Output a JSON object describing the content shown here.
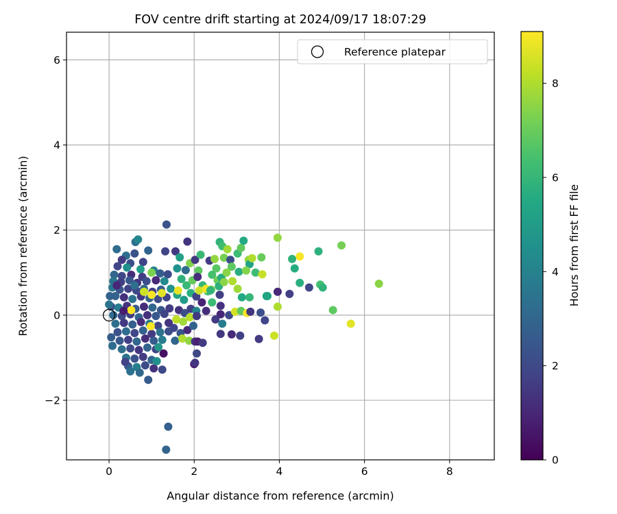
{
  "chart_data": {
    "type": "scatter",
    "title": "FOV centre drift starting at 2024/09/17 18:07:29",
    "xlabel": "Angular distance from reference (arcmin)",
    "ylabel": "Rotation from reference (arcmin)",
    "xlim": [
      -1.0,
      9.05
    ],
    "ylim": [
      -3.4,
      6.65
    ],
    "xticks": [
      0,
      2,
      4,
      6,
      8
    ],
    "yticks": [
      -2,
      0,
      2,
      4,
      6
    ],
    "xtick_labels": [
      "0",
      "2",
      "4",
      "6",
      "8"
    ],
    "ytick_labels": [
      "−2",
      "0",
      "2",
      "4",
      "6"
    ],
    "grid": true,
    "legend": {
      "position": "top-right",
      "entries": [
        {
          "label": "Reference platepar",
          "marker": "open-circle"
        }
      ]
    },
    "reference_point": {
      "x": 0,
      "y": 0
    },
    "colorbar": {
      "label": "Hours from first FF file",
      "colormap": "viridis",
      "range": [
        0,
        9.1
      ],
      "ticks": [
        0,
        2,
        4,
        6,
        8
      ],
      "tick_labels": [
        "0",
        "2",
        "4",
        "6",
        "8"
      ]
    },
    "points_format": [
      "x",
      "y",
      "hours"
    ],
    "points": [
      [
        1.35,
        2.13,
        2.3
      ],
      [
        1.39,
        -2.62,
        2.8
      ],
      [
        1.34,
        -3.16,
        2.9
      ],
      [
        0.62,
        1.72,
        3.3
      ],
      [
        0.68,
        1.78,
        4.2
      ],
      [
        0.18,
        1.55,
        3.2
      ],
      [
        0.92,
        1.52,
        2.9
      ],
      [
        1.32,
        1.5,
        1.9
      ],
      [
        1.56,
        1.5,
        1.5
      ],
      [
        1.84,
        1.73,
        1.4
      ],
      [
        0.6,
        1.45,
        2.3
      ],
      [
        0.4,
        1.4,
        3.3
      ],
      [
        0.3,
        1.3,
        1.6
      ],
      [
        0.5,
        1.22,
        2.2
      ],
      [
        0.8,
        1.25,
        1.8
      ],
      [
        0.2,
        1.15,
        1.9
      ],
      [
        0.42,
        1.12,
        4.5
      ],
      [
        0.74,
        1.08,
        5.0
      ],
      [
        1.05,
        1.05,
        3.9
      ],
      [
        0.12,
        0.95,
        3.0
      ],
      [
        0.3,
        0.92,
        2.0
      ],
      [
        0.52,
        0.95,
        1.2
      ],
      [
        0.78,
        0.9,
        1.6
      ],
      [
        1.0,
        1.0,
        7.3
      ],
      [
        1.2,
        0.98,
        2.7
      ],
      [
        1.38,
        0.96,
        2.1
      ],
      [
        0.1,
        0.8,
        3.5
      ],
      [
        0.28,
        0.78,
        1.7
      ],
      [
        0.48,
        0.82,
        2.5
      ],
      [
        0.66,
        0.76,
        1.4
      ],
      [
        0.88,
        0.8,
        2.2
      ],
      [
        1.1,
        0.82,
        1.1
      ],
      [
        1.3,
        0.8,
        4.3
      ],
      [
        0.08,
        0.65,
        3.6
      ],
      [
        0.25,
        0.6,
        2.4
      ],
      [
        0.45,
        0.62,
        1.8
      ],
      [
        0.64,
        0.58,
        2.0
      ],
      [
        0.82,
        0.62,
        3.1
      ],
      [
        1.02,
        0.55,
        1.6
      ],
      [
        1.22,
        0.6,
        2.6
      ],
      [
        0.15,
        0.45,
        2.9
      ],
      [
        0.35,
        0.42,
        1.3
      ],
      [
        0.55,
        0.38,
        3.4
      ],
      [
        0.75,
        0.44,
        1.5
      ],
      [
        0.95,
        0.4,
        2.8
      ],
      [
        1.15,
        0.38,
        2.1
      ],
      [
        1.35,
        0.42,
        1.9
      ],
      [
        0.05,
        0.2,
        2.2
      ],
      [
        0.22,
        0.18,
        3.8
      ],
      [
        0.42,
        0.22,
        1.4
      ],
      [
        0.62,
        0.15,
        2.6
      ],
      [
        0.82,
        0.2,
        1.2
      ],
      [
        1.02,
        0.18,
        3.0
      ],
      [
        1.22,
        0.12,
        2.4
      ],
      [
        1.42,
        0.16,
        1.6
      ],
      [
        0.1,
        0.0,
        3.1
      ],
      [
        0.3,
        -0.02,
        2.0
      ],
      [
        0.5,
        0.02,
        1.7
      ],
      [
        0.7,
        -0.05,
        2.9
      ],
      [
        0.9,
        0.0,
        1.3
      ],
      [
        1.1,
        -0.02,
        2.5
      ],
      [
        1.3,
        0.03,
        1.8
      ],
      [
        0.15,
        -0.2,
        3.3
      ],
      [
        0.35,
        -0.18,
        1.5
      ],
      [
        0.55,
        -0.22,
        2.7
      ],
      [
        0.75,
        -0.16,
        1.1
      ],
      [
        0.95,
        -0.2,
        3.6
      ],
      [
        1.15,
        -0.25,
        2.0
      ],
      [
        1.4,
        -0.18,
        1.4
      ],
      [
        0.2,
        -0.4,
        2.3
      ],
      [
        0.4,
        -0.38,
        3.2
      ],
      [
        0.6,
        -0.42,
        1.9
      ],
      [
        0.8,
        -0.36,
        2.8
      ],
      [
        1.0,
        -0.44,
        1.6
      ],
      [
        1.2,
        -0.4,
        3.4
      ],
      [
        1.4,
        -0.38,
        2.2
      ],
      [
        0.25,
        -0.6,
        2.5
      ],
      [
        0.45,
        -0.58,
        1.7
      ],
      [
        0.65,
        -0.62,
        3.0
      ],
      [
        0.85,
        -0.55,
        1.2
      ],
      [
        1.05,
        -0.6,
        2.6
      ],
      [
        1.25,
        -0.58,
        3.8
      ],
      [
        0.3,
        -0.8,
        3.3
      ],
      [
        0.5,
        -0.78,
        2.1
      ],
      [
        0.7,
        -0.82,
        1.4
      ],
      [
        0.9,
        -0.76,
        2.9
      ],
      [
        1.1,
        -0.8,
        1.8
      ],
      [
        0.4,
        -1.0,
        3.5
      ],
      [
        0.6,
        -1.02,
        2.3
      ],
      [
        0.8,
        -0.98,
        1.6
      ],
      [
        1.0,
        -1.05,
        3.0
      ],
      [
        0.45,
        -1.2,
        2.7
      ],
      [
        0.65,
        -1.22,
        3.9
      ],
      [
        0.85,
        -1.18,
        2.1
      ],
      [
        0.5,
        -1.32,
        3.4
      ],
      [
        0.72,
        -1.35,
        3.1
      ],
      [
        0.92,
        -1.52,
        2.6
      ],
      [
        1.05,
        -1.25,
        1.3
      ],
      [
        1.25,
        -1.28,
        2.0
      ],
      [
        0.08,
        -0.72,
        3.2
      ],
      [
        0.05,
        -0.52,
        2.7
      ],
      [
        0.0,
        0.25,
        3.5
      ],
      [
        0.02,
        0.45,
        2.8
      ],
      [
        0.38,
        -1.1,
        1.8
      ],
      [
        1.12,
        -1.08,
        4.5
      ],
      [
        1.28,
        -0.9,
        0.4
      ],
      [
        1.16,
        -0.75,
        4.8
      ],
      [
        1.45,
        0.62,
        4.6
      ],
      [
        1.6,
        1.1,
        4.6
      ],
      [
        1.66,
        1.36,
        5.2
      ],
      [
        1.8,
        1.06,
        3.2
      ],
      [
        1.9,
        1.22,
        7.4
      ],
      [
        2.02,
        1.3,
        1.5
      ],
      [
        2.1,
        1.05,
        6.8
      ],
      [
        2.15,
        1.42,
        6.1
      ],
      [
        1.7,
        0.85,
        5.8
      ],
      [
        1.82,
        0.7,
        6.1
      ],
      [
        1.96,
        0.82,
        6.9
      ],
      [
        2.08,
        0.9,
        1.2
      ],
      [
        2.2,
        0.7,
        6.0
      ],
      [
        2.32,
        0.56,
        6.4
      ],
      [
        1.6,
        0.48,
        5.4
      ],
      [
        1.76,
        0.36,
        4.9
      ],
      [
        1.92,
        0.52,
        5.7
      ],
      [
        2.05,
        0.44,
        1.8
      ],
      [
        2.18,
        0.3,
        0.9
      ],
      [
        1.64,
        0.12,
        1.3
      ],
      [
        1.78,
        0.05,
        2.2
      ],
      [
        1.92,
        0.15,
        1.7
      ],
      [
        2.05,
        0.1,
        4.1
      ],
      [
        2.12,
        0.58,
        8.4
      ],
      [
        2.28,
        0.62,
        9.0
      ],
      [
        1.58,
        -0.1,
        8.2
      ],
      [
        1.74,
        -0.15,
        7.8
      ],
      [
        1.9,
        -0.05,
        8.1
      ],
      [
        2.06,
        -0.02,
        1.5
      ],
      [
        1.52,
        -0.3,
        1.9
      ],
      [
        1.68,
        -0.42,
        2.4
      ],
      [
        1.84,
        -0.35,
        1.1
      ],
      [
        1.98,
        -0.25,
        2.9
      ],
      [
        1.55,
        -0.6,
        3.0
      ],
      [
        1.72,
        -0.55,
        8.0
      ],
      [
        1.88,
        -0.6,
        7.6
      ],
      [
        2.02,
        -0.62,
        1.3
      ],
      [
        2.08,
        -0.62,
        0.8
      ],
      [
        2.2,
        -0.65,
        1.6
      ],
      [
        2.0,
        -1.15,
        0.6
      ],
      [
        2.06,
        -0.9,
        2.0
      ],
      [
        2.02,
        -1.12,
        1.4
      ],
      [
        0.82,
        0.55,
        8.4
      ],
      [
        1.0,
        0.48,
        9.0
      ],
      [
        1.24,
        0.52,
        8.7
      ],
      [
        0.52,
        0.12,
        9.1
      ],
      [
        0.98,
        -0.26,
        9.0
      ],
      [
        1.62,
        0.58,
        8.8
      ],
      [
        2.36,
        1.28,
        1.6
      ],
      [
        2.48,
        1.32,
        7.6
      ],
      [
        2.52,
        1.1,
        6.7
      ],
      [
        2.6,
        1.72,
        5.9
      ],
      [
        2.66,
        1.62,
        6.3
      ],
      [
        2.78,
        1.55,
        7.8
      ],
      [
        2.7,
        1.35,
        7.2
      ],
      [
        2.85,
        1.3,
        2.1
      ],
      [
        3.02,
        1.45,
        6.2
      ],
      [
        3.1,
        1.58,
        6.9
      ],
      [
        3.16,
        1.75,
        5.5
      ],
      [
        3.28,
        1.3,
        7.6
      ],
      [
        3.3,
        1.2,
        5.3
      ],
      [
        3.36,
        1.34,
        8.0
      ],
      [
        3.58,
        1.36,
        7.0
      ],
      [
        2.42,
        0.95,
        6.4
      ],
      [
        2.55,
        0.82,
        7.1
      ],
      [
        2.64,
        0.88,
        5.6
      ],
      [
        2.76,
        1.0,
        7.5
      ],
      [
        2.88,
        1.14,
        6.8
      ],
      [
        3.05,
        1.02,
        5.7
      ],
      [
        3.22,
        1.05,
        7.4
      ],
      [
        3.44,
        1.0,
        6.2
      ],
      [
        3.6,
        0.96,
        8.3
      ],
      [
        2.4,
        0.6,
        7.2
      ],
      [
        2.58,
        0.68,
        5.8
      ],
      [
        2.7,
        0.78,
        7.5
      ],
      [
        2.9,
        0.8,
        8.0
      ],
      [
        3.02,
        0.62,
        7.8
      ],
      [
        3.12,
        0.42,
        5.5
      ],
      [
        3.3,
        0.42,
        6.0
      ],
      [
        3.7,
        0.45,
        5.2
      ],
      [
        2.42,
        0.3,
        6.2
      ],
      [
        2.6,
        0.48,
        1.7
      ],
      [
        2.62,
        0.22,
        1.3
      ],
      [
        2.62,
        0.02,
        1.0
      ],
      [
        2.66,
        -0.2,
        3.8
      ],
      [
        2.62,
        -0.44,
        1.5
      ],
      [
        2.88,
        -0.45,
        1.1
      ],
      [
        3.08,
        -0.48,
        1.7
      ],
      [
        2.82,
        0.0,
        2.0
      ],
      [
        2.96,
        0.08,
        8.5
      ],
      [
        3.1,
        0.1,
        6.9
      ],
      [
        3.24,
        0.05,
        9.0
      ],
      [
        3.32,
        0.08,
        1.4
      ],
      [
        3.52,
        -0.56,
        1.6
      ],
      [
        3.56,
        0.06,
        2.2
      ],
      [
        3.66,
        -0.12,
        1.9
      ],
      [
        3.72,
        0.45,
        5.3
      ],
      [
        3.88,
        -0.48,
        8.4
      ],
      [
        3.96,
        1.82,
        7.6
      ],
      [
        3.96,
        0.2,
        8.0
      ],
      [
        3.96,
        0.55,
        1.0
      ],
      [
        4.24,
        0.5,
        1.7
      ],
      [
        4.3,
        1.32,
        5.8
      ],
      [
        4.36,
        1.1,
        5.6
      ],
      [
        4.48,
        1.38,
        9.0
      ],
      [
        4.48,
        0.76,
        5.7
      ],
      [
        4.7,
        0.65,
        1.9
      ],
      [
        4.92,
        1.5,
        5.8
      ],
      [
        4.96,
        0.72,
        6.4
      ],
      [
        5.02,
        0.65,
        5.9
      ],
      [
        5.26,
        0.12,
        6.8
      ],
      [
        5.46,
        1.64,
        7.2
      ],
      [
        5.68,
        -0.2,
        8.7
      ],
      [
        6.34,
        0.74,
        7.5
      ],
      [
        2.28,
        0.1,
        1.2
      ],
      [
        2.5,
        -0.1,
        1.6
      ],
      [
        2.38,
        0.58,
        5.9
      ],
      [
        0.18,
        0.7,
        1.0
      ],
      [
        0.6,
        0.7,
        3.3
      ],
      [
        0.34,
        0.1,
        0.7
      ]
    ]
  }
}
